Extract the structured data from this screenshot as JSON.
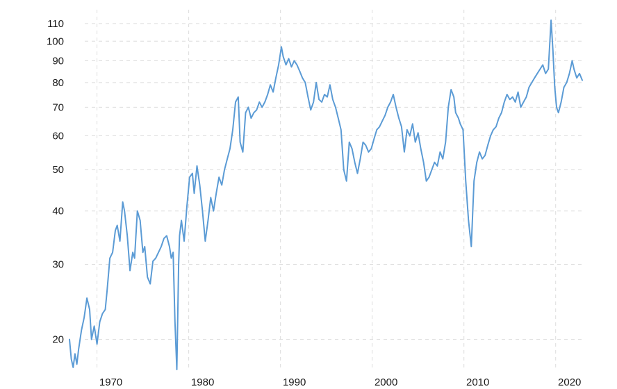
{
  "chart_data": {
    "type": "line",
    "title": "",
    "xlabel": "",
    "ylabel": "",
    "y_scale": "log",
    "ylim": [
      17,
      115
    ],
    "xlim": [
      1967.0,
      2022.9
    ],
    "grid": true,
    "legend": "none",
    "colors": {
      "line": "#5b9bd5",
      "grid": "#dcdcdc",
      "text": "#1a1a1a"
    },
    "x_ticks": [
      {
        "value": 1970,
        "label": "1970"
      },
      {
        "value": 1980,
        "label": "1980"
      },
      {
        "value": 1990,
        "label": "1990"
      },
      {
        "value": 2000,
        "label": "2000"
      },
      {
        "value": 2010,
        "label": "2010"
      },
      {
        "value": 2020,
        "label": "2020"
      }
    ],
    "y_ticks": [
      {
        "value": 20,
        "label": "20"
      },
      {
        "value": 30,
        "label": "30"
      },
      {
        "value": 40,
        "label": "40"
      },
      {
        "value": 50,
        "label": "50"
      },
      {
        "value": 60,
        "label": "60"
      },
      {
        "value": 70,
        "label": "70"
      },
      {
        "value": 80,
        "label": "80"
      },
      {
        "value": 90,
        "label": "90"
      },
      {
        "value": 100,
        "label": "100"
      },
      {
        "value": 110,
        "label": "110"
      }
    ],
    "series": [
      {
        "x": [
          1967.0,
          1967.2,
          1967.4,
          1967.6,
          1967.8,
          1968.0,
          1968.3,
          1968.6,
          1968.9,
          1969.2,
          1969.4,
          1969.7,
          1970.0,
          1970.3,
          1970.6,
          1970.9,
          1971.1,
          1971.4,
          1971.7,
          1972.0,
          1972.2,
          1972.5,
          1972.8,
          1973.0,
          1973.3,
          1973.6,
          1973.9,
          1974.1,
          1974.4,
          1974.7,
          1975.0,
          1975.2,
          1975.5,
          1975.8,
          1976.1,
          1976.4,
          1976.7,
          1977.0,
          1977.3,
          1977.6,
          1977.9,
          1978.1,
          1978.3,
          1978.5,
          1978.7,
          1978.9,
          1979.0,
          1979.2,
          1979.5,
          1979.8,
          1980.1,
          1980.4,
          1980.6,
          1980.9,
          1981.2,
          1981.5,
          1981.8,
          1982.1,
          1982.4,
          1982.7,
          1983.0,
          1983.3,
          1983.6,
          1983.9,
          1984.2,
          1984.5,
          1984.8,
          1985.1,
          1985.4,
          1985.6,
          1985.9,
          1986.2,
          1986.5,
          1986.8,
          1987.1,
          1987.4,
          1987.7,
          1988.0,
          1988.3,
          1988.6,
          1988.9,
          1989.2,
          1989.5,
          1989.8,
          1990.1,
          1990.3,
          1990.6,
          1990.9,
          1991.2,
          1991.5,
          1991.8,
          1992.1,
          1992.4,
          1992.7,
          1993.0,
          1993.3,
          1993.6,
          1993.9,
          1994.2,
          1994.5,
          1994.8,
          1995.1,
          1995.4,
          1995.7,
          1996.0,
          1996.3,
          1996.6,
          1996.9,
          1997.2,
          1997.5,
          1997.8,
          1998.1,
          1998.4,
          1998.7,
          1999.0,
          1999.3,
          1999.6,
          1999.9,
          2000.2,
          2000.5,
          2000.8,
          2001.1,
          2001.4,
          2001.7,
          2002.0,
          2002.3,
          2002.6,
          2002.9,
          2003.2,
          2003.5,
          2003.8,
          2004.1,
          2004.4,
          2004.7,
          2005.0,
          2005.3,
          2005.6,
          2005.9,
          2006.2,
          2006.5,
          2006.8,
          2007.1,
          2007.4,
          2007.7,
          2008.0,
          2008.3,
          2008.6,
          2008.9,
          2009.1,
          2009.4,
          2009.6,
          2009.9,
          2010.2,
          2010.5,
          2010.8,
          2011.1,
          2011.4,
          2011.7,
          2012.0,
          2012.3,
          2012.6,
          2012.9,
          2013.2,
          2013.5,
          2013.8,
          2014.1,
          2014.4,
          2014.7,
          2015.0,
          2015.3,
          2015.6,
          2015.9,
          2016.2,
          2016.5,
          2016.8,
          2017.1,
          2017.4,
          2017.7,
          2018.0,
          2018.3,
          2018.6,
          2018.9,
          2019.2,
          2019.5,
          2019.7,
          2019.9,
          2020.1,
          2020.3,
          2020.6,
          2020.9,
          2021.2,
          2021.5,
          2021.8,
          2022.0,
          2022.3,
          2022.6,
          2022.9
        ],
        "y": [
          20.0,
          18.0,
          17.2,
          18.5,
          17.5,
          19.0,
          21.0,
          22.5,
          25.0,
          23.5,
          20.0,
          21.5,
          19.5,
          22.0,
          23.0,
          23.5,
          26.0,
          31.0,
          32.0,
          36.0,
          37.0,
          34.0,
          42.0,
          40.0,
          35.0,
          29.0,
          32.0,
          31.0,
          40.0,
          38.0,
          32.0,
          33.0,
          28.0,
          27.0,
          30.5,
          31.0,
          32.0,
          33.0,
          34.5,
          35.0,
          33.0,
          31.0,
          32.0,
          22.0,
          17.0,
          30.0,
          35.0,
          38.0,
          34.0,
          41.0,
          48.0,
          49.0,
          44.0,
          51.0,
          46.0,
          40.0,
          34.0,
          38.0,
          43.0,
          40.0,
          44.0,
          48.0,
          46.0,
          50.0,
          53.0,
          56.0,
          62.0,
          72.0,
          74.0,
          58.0,
          55.0,
          68.0,
          70.0,
          66.0,
          68.0,
          69.0,
          72.0,
          70.0,
          72.0,
          75.0,
          79.0,
          76.0,
          82.0,
          88.0,
          97.0,
          92.0,
          88.0,
          91.0,
          87.0,
          90.0,
          88.0,
          85.0,
          82.0,
          80.0,
          74.0,
          69.0,
          72.0,
          80.0,
          73.0,
          72.0,
          75.0,
          74.0,
          79.0,
          73.0,
          70.0,
          66.0,
          62.0,
          50.0,
          47.0,
          58.0,
          56.0,
          52.0,
          49.0,
          53.0,
          58.0,
          57.0,
          55.0,
          56.0,
          59.0,
          62.0,
          63.0,
          65.0,
          67.0,
          70.0,
          72.0,
          75.0,
          70.0,
          66.0,
          63.0,
          55.0,
          62.0,
          60.0,
          64.0,
          58.0,
          61.0,
          56.0,
          52.0,
          47.0,
          48.0,
          50.0,
          52.0,
          51.0,
          55.0,
          53.0,
          58.0,
          70.0,
          77.0,
          74.0,
          68.0,
          66.0,
          64.0,
          62.0,
          47.0,
          38.0,
          33.0,
          47.0,
          52.0,
          55.0,
          53.0,
          54.0,
          57.0,
          60.0,
          62.0,
          63.0,
          66.0,
          68.0,
          72.0,
          75.0,
          73.0,
          74.0,
          72.0,
          76.0,
          70.0,
          72.0,
          74.0,
          78.0,
          80.0,
          82.0,
          84.0,
          86.0,
          88.0,
          84.0,
          86.0,
          112.0,
          95.0,
          78.0,
          70.0,
          68.0,
          72.0,
          78.0,
          80.0,
          84.0,
          90.0,
          86.0,
          82.0,
          84.0,
          81.0
        ]
      }
    ]
  }
}
